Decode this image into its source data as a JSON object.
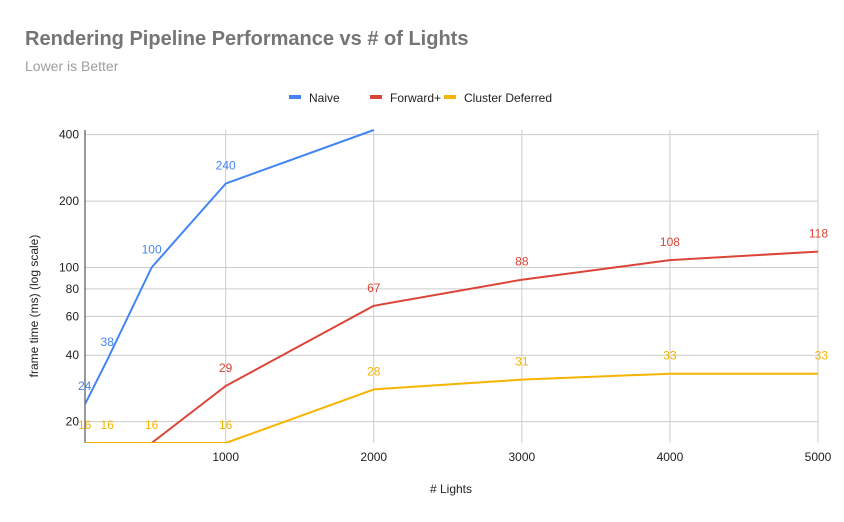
{
  "chart_data": {
    "type": "line",
    "title": "Rendering Pipeline Performance vs # of Lights",
    "subtitle": "Lower is Better",
    "xlabel": "# Lights",
    "ylabel": "frame time (ms) (log scale)",
    "y_scale": "log",
    "xlim": [
      50,
      5000
    ],
    "ylim": [
      16,
      420
    ],
    "x_ticks": [
      1000,
      2000,
      3000,
      4000,
      5000
    ],
    "y_ticks": [
      20,
      40,
      60,
      80,
      100,
      200,
      400
    ],
    "grid": true,
    "legend_position": "top",
    "series": [
      {
        "name": "Naive",
        "color": "#4285f4",
        "x": [
          50,
          200,
          500,
          1000,
          2000
        ],
        "values": [
          24,
          38,
          100,
          240,
          420
        ],
        "labels": [
          "24",
          "38",
          "100",
          "240",
          ""
        ]
      },
      {
        "name": "Forward+",
        "color": "#db4437",
        "x": [
          50,
          200,
          500,
          1000,
          2000,
          3000,
          4000,
          5000
        ],
        "values": [
          16,
          16,
          16,
          29,
          67,
          88,
          108,
          118
        ],
        "labels": [
          "",
          "",
          "",
          "29",
          "67",
          "88",
          "108",
          "118"
        ]
      },
      {
        "name": "Cluster Deferred",
        "color": "#f4b400",
        "x": [
          50,
          200,
          500,
          1000,
          2000,
          3000,
          4000,
          5000
        ],
        "values": [
          16,
          16,
          16,
          16,
          28,
          31,
          33,
          33
        ],
        "labels": [
          "16",
          "16",
          "16",
          "16",
          "28",
          "31",
          "33",
          "33"
        ]
      }
    ]
  }
}
